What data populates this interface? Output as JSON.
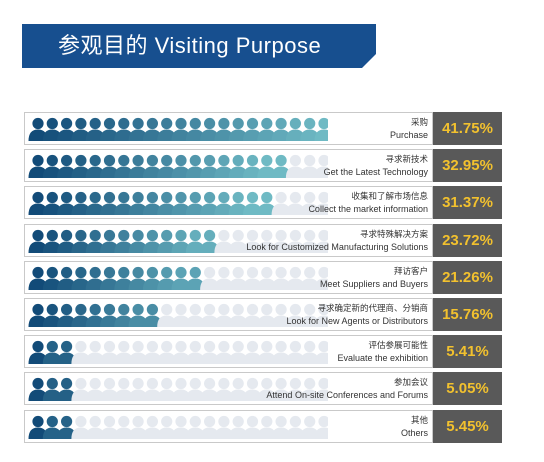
{
  "title": "参观目的 Visiting Purpose",
  "colors": {
    "banner": "#174f8f",
    "value_bg": "#595959",
    "value_text": "#f2c12e",
    "icon_empty": "#e5e9ef",
    "icon_gradient": [
      "#124b78",
      "#6fbac4"
    ]
  },
  "chart_data": {
    "type": "bar",
    "title": "参观目的 Visiting Purpose",
    "categories": [
      {
        "zh": "采购",
        "en": "Purchase"
      },
      {
        "zh": "寻求新技术",
        "en": "Get the Latest Technology"
      },
      {
        "zh": "收集和了解市场信息",
        "en": "Collect the market information"
      },
      {
        "zh": "寻求特殊解决方案",
        "en": "Look for Customized Manufacturing Solutions"
      },
      {
        "zh": "拜访客户",
        "en": "Meet Suppliers and Buyers"
      },
      {
        "zh": "寻求确定新的代理商、分销商",
        "en": "Look for New Agents or Distributors"
      },
      {
        "zh": "评估参展可能性",
        "en": "Evaluate the exhibition"
      },
      {
        "zh": "参加会议",
        "en": "Attend On-site Conferences and Forums"
      },
      {
        "zh": "其他",
        "en": "Others"
      }
    ],
    "values": [
      41.75,
      32.95,
      31.37,
      23.72,
      21.26,
      15.76,
      5.41,
      5.05,
      5.45
    ],
    "value_labels": [
      "41.75%",
      "32.95%",
      "31.37%",
      "23.72%",
      "21.26%",
      "15.76%",
      "5.41%",
      "5.05%",
      "5.45%"
    ],
    "icon_scale_max_percent": 40,
    "legend": "none"
  }
}
